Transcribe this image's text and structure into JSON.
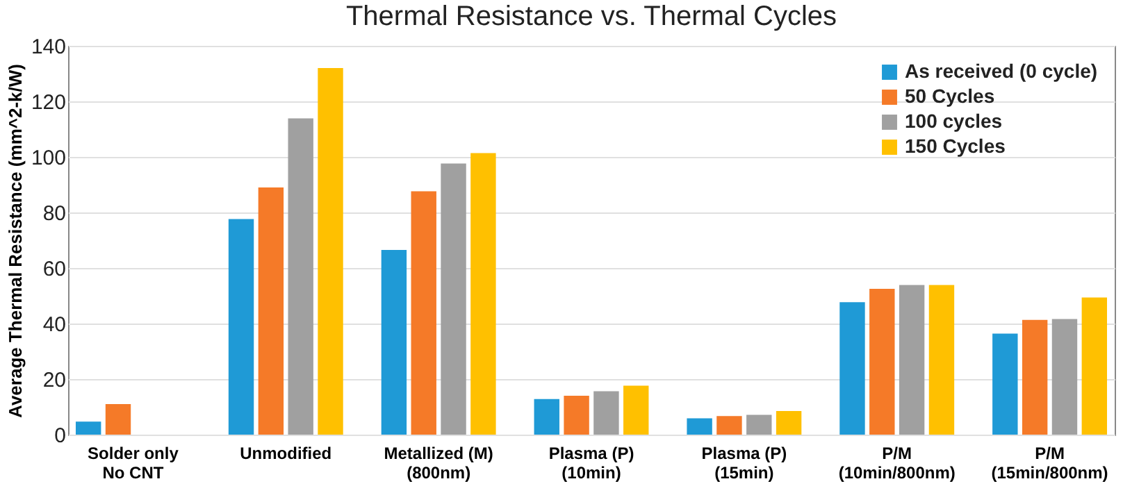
{
  "chart_data": {
    "type": "bar",
    "title": "Thermal Resistance vs. Thermal Cycles",
    "ylabel": "Average Thermal Resistance (mm^2-k/W)",
    "categories": [
      "Solder only\nNo CNT",
      "Unmodified",
      "Metallized (M)\n(800nm)",
      "Plasma (P)\n(10min)",
      "Plasma (P)\n(15min)",
      "P/M\n(10min/800nm)",
      "P/M\n(15min/800nm)"
    ],
    "series": [
      {
        "name": "As received (0 cycle)",
        "color": "#1f9ad6",
        "values": [
          4.7,
          77.6,
          66.5,
          12.8,
          5.9,
          47.7,
          36.4
        ]
      },
      {
        "name": "50 Cycles",
        "color": "#f57a28",
        "values": [
          11,
          89,
          87.6,
          14,
          6.7,
          52.5,
          41.3
        ]
      },
      {
        "name": "100 cycles",
        "color": "#a0a0a0",
        "values": [
          null,
          113.9,
          97.6,
          15.6,
          7.1,
          53.9,
          41.6
        ]
      },
      {
        "name": "150 Cycles",
        "color": "#ffc000",
        "values": [
          null,
          132,
          101.4,
          17.6,
          8.5,
          53.9,
          49.4
        ]
      }
    ],
    "ylim": [
      0,
      140
    ],
    "yticks": [
      0,
      20,
      40,
      60,
      80,
      100,
      120,
      140
    ],
    "grid": "y",
    "legend": "top right"
  }
}
